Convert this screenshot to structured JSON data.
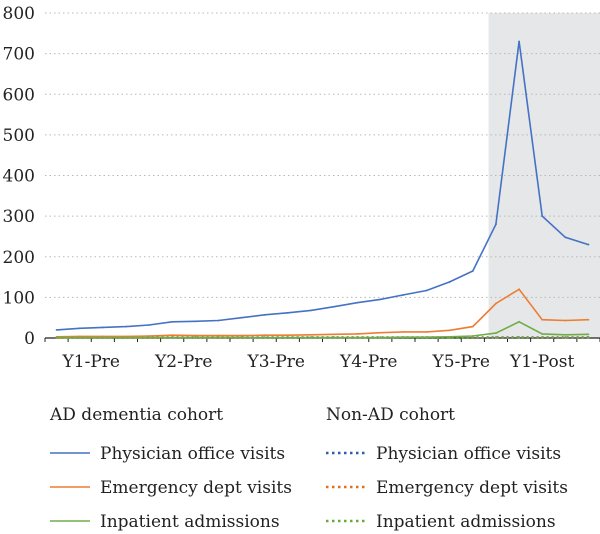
{
  "chart_data": {
    "type": "line",
    "title": "",
    "xlabel": "",
    "ylabel": "",
    "ylim": [
      0,
      800
    ],
    "yticks": [
      0,
      100,
      200,
      300,
      400,
      500,
      600,
      700,
      800
    ],
    "x_tick_labels": [
      "Y1-Pre",
      "Y2-Pre",
      "Y3-Pre",
      "Y4-Pre",
      "Y5-Pre",
      "Y1-Post"
    ],
    "n_points": 24,
    "grid": "horizontal dotted",
    "shaded_region": {
      "from_index": 19,
      "to_index": 24,
      "color": "#e6e7e9"
    },
    "legend": {
      "placement": "bottom",
      "groups": [
        {
          "title": "AD dementia cohort",
          "style": "solid"
        },
        {
          "title": "Non-AD cohort",
          "style": "dotted"
        }
      ]
    },
    "series": [
      {
        "name": "Physician office visits",
        "cohort": "AD dementia cohort",
        "color": "#4472c4",
        "dash": "solid",
        "values": [
          20,
          24,
          26,
          28,
          32,
          40,
          41,
          43,
          50,
          57,
          62,
          68,
          77,
          87,
          95,
          106,
          117,
          138,
          165,
          280,
          730,
          300,
          248,
          230
        ]
      },
      {
        "name": "Emergency dept visits",
        "cohort": "AD dementia cohort",
        "color": "#ed7d31",
        "dash": "solid",
        "values": [
          3,
          4,
          4,
          4,
          5,
          7,
          6,
          6,
          6,
          7,
          7,
          8,
          9,
          10,
          13,
          15,
          15,
          19,
          28,
          85,
          120,
          45,
          43,
          45
        ]
      },
      {
        "name": "Inpatient admissions",
        "cohort": "AD dementia cohort",
        "color": "#70ad47",
        "dash": "solid",
        "values": [
          1,
          1,
          1,
          1,
          1,
          1,
          1,
          1,
          1,
          1,
          1,
          1,
          1,
          1,
          1,
          2,
          2,
          3,
          5,
          12,
          40,
          10,
          8,
          9
        ]
      },
      {
        "name": "Physician office visits",
        "cohort": "Non-AD cohort",
        "color": "#2e5ca8",
        "dash": "dotted",
        "values": [
          2,
          2,
          2,
          2,
          2,
          2,
          2,
          2,
          2,
          2,
          2,
          2,
          2,
          2,
          2,
          2,
          2,
          2,
          2,
          2,
          2,
          2,
          2,
          2
        ]
      },
      {
        "name": "Emergency dept visits",
        "cohort": "Non-AD cohort",
        "color": "#e0701f",
        "dash": "dotted",
        "values": [
          1,
          1,
          1,
          1,
          1,
          1,
          1,
          1,
          1,
          1,
          1,
          1,
          1,
          1,
          1,
          1,
          1,
          1,
          1,
          1,
          1,
          1,
          1,
          1
        ]
      },
      {
        "name": "Inpatient admissions",
        "cohort": "Non-AD cohort",
        "color": "#6aa93e",
        "dash": "dotted",
        "values": [
          0,
          0,
          0,
          0,
          0,
          0,
          0,
          0,
          0,
          0,
          0,
          0,
          0,
          0,
          0,
          0,
          0,
          0,
          0,
          0,
          0,
          0,
          0,
          0
        ]
      }
    ]
  }
}
